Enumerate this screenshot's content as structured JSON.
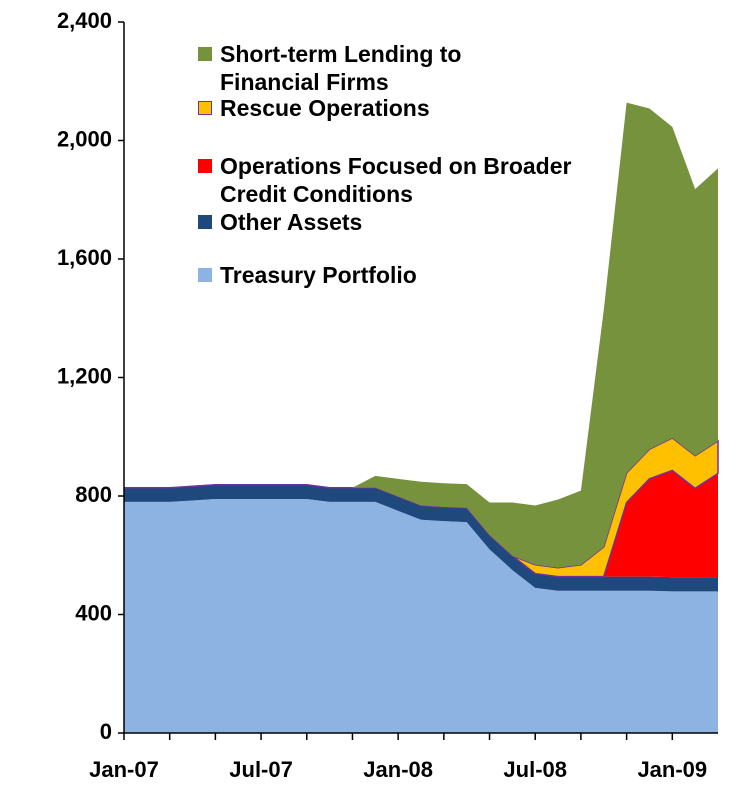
{
  "chart_data": {
    "type": "stacked_area",
    "x": [
      "2007-01",
      "2007-02",
      "2007-03",
      "2007-04",
      "2007-05",
      "2007-06",
      "2007-07",
      "2007-08",
      "2007-09",
      "2007-10",
      "2007-11",
      "2007-12",
      "2008-01",
      "2008-02",
      "2008-03",
      "2008-04",
      "2008-05",
      "2008-06",
      "2008-07",
      "2008-08",
      "2008-09",
      "2008-10",
      "2008-11",
      "2008-12",
      "2009-01",
      "2009-02",
      "2009-03"
    ],
    "xlim": [
      "2007-01",
      "2009-03"
    ],
    "xticks": [
      {
        "value": "2007-01",
        "label": "Jan-07"
      },
      {
        "value": "2007-03"
      },
      {
        "value": "2007-05"
      },
      {
        "value": "2007-07",
        "label": "Jul-07"
      },
      {
        "value": "2007-09"
      },
      {
        "value": "2007-11"
      },
      {
        "value": "2008-01",
        "label": "Jan-08"
      },
      {
        "value": "2008-03"
      },
      {
        "value": "2008-05"
      },
      {
        "value": "2008-07",
        "label": "Jul-08"
      },
      {
        "value": "2008-09"
      },
      {
        "value": "2008-11"
      },
      {
        "value": "2009-01",
        "label": "Jan-09"
      }
    ],
    "ylim": [
      0,
      2400
    ],
    "yticks": [
      0,
      400,
      800,
      {
        "value": 1200,
        "label": "1,200"
      },
      {
        "value": 1600,
        "label": "1,600"
      },
      {
        "value": 2000,
        "label": "2,000"
      },
      {
        "value": 2400,
        "label": "2,400"
      }
    ],
    "series": [
      {
        "name": "Treasury Portfolio",
        "color": "#8db3e2",
        "values": [
          780,
          780,
          780,
          785,
          790,
          790,
          790,
          790,
          790,
          780,
          780,
          780,
          750,
          720,
          715,
          712,
          620,
          550,
          490,
          480,
          480,
          480,
          480,
          480,
          478,
          478,
          478
        ]
      },
      {
        "name": "Other Assets",
        "color": "#1f497d",
        "values": [
          48,
          48,
          48,
          48,
          48,
          48,
          48,
          48,
          48,
          48,
          48,
          48,
          48,
          48,
          48,
          48,
          48,
          48,
          48,
          48,
          48,
          48,
          48,
          48,
          48,
          48,
          48
        ]
      },
      {
        "name": "Operations Focused on Broader Credit Conditions",
        "color": "#ff0000",
        "values": [
          0,
          0,
          0,
          0,
          0,
          0,
          0,
          0,
          0,
          0,
          0,
          0,
          0,
          0,
          0,
          0,
          0,
          0,
          0,
          0,
          0,
          0,
          250,
          330,
          360,
          300,
          350
        ]
      },
      {
        "name": "Rescue Operations",
        "color": "#ffc000",
        "border": "#7030a0",
        "values": [
          0,
          0,
          0,
          0,
          0,
          0,
          0,
          0,
          0,
          0,
          0,
          0,
          0,
          0,
          0,
          0,
          0,
          0,
          30,
          30,
          40,
          100,
          100,
          100,
          110,
          110,
          110
        ]
      },
      {
        "name": "Short-term Lending to Financial Firms",
        "color": "#76923c",
        "values": [
          0,
          0,
          0,
          0,
          0,
          0,
          0,
          0,
          0,
          0,
          0,
          40,
          60,
          80,
          80,
          80,
          110,
          180,
          200,
          230,
          250,
          800,
          1250,
          1150,
          1050,
          900,
          920
        ]
      }
    ]
  }
}
